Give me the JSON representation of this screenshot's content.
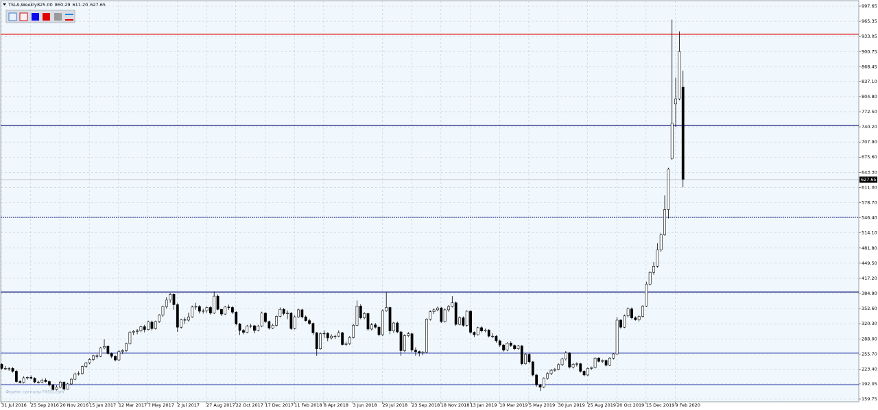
{
  "chart_data": {
    "type": "candlestick",
    "symbol": "TSLA,Weekly",
    "header_labels": [
      "825.00",
      "860.29",
      "611.20",
      "627.65"
    ],
    "watermark": "Форекс сигналы FXSSI.com",
    "ylim": [
      153.9,
      1007.9
    ],
    "yticks": [
      997.65,
      965.35,
      933.05,
      900.75,
      868.45,
      {
        "value": 837.1,
        "label": "837.10"
      },
      {
        "value": 804.8,
        "label": "804.80"
      },
      {
        "value": 772.5,
        "label": "772.50"
      },
      {
        "value": 740.2,
        "label": "740.20"
      },
      {
        "value": 707.9,
        "label": "707.90"
      },
      {
        "value": 675.6,
        "label": "675.60"
      },
      {
        "value": 643.3,
        "label": "643.30"
      },
      {
        "value": 611,
        "label": "611.00"
      },
      {
        "value": 578.7,
        "label": "578.70"
      },
      {
        "value": 546.4,
        "label": "546.40"
      },
      {
        "value": 514.1,
        "label": "514.10"
      },
      {
        "value": 481.8,
        "label": "481.80"
      },
      {
        "value": 449.5,
        "label": "449.50"
      },
      {
        "value": 417.2,
        "label": "417.20"
      },
      {
        "value": 384.9,
        "label": "384.90"
      },
      {
        "value": 352.6,
        "label": "352.60"
      },
      {
        "value": 320.3,
        "label": "320.30"
      },
      {
        "value": 288,
        "label": "288.00"
      },
      {
        "value": 255.7,
        "label": "255.70"
      },
      {
        "value": 223.4,
        "label": "223.40"
      },
      192.05,
      159.75
    ],
    "grid": true,
    "bull_color": "#ffffff",
    "bear_color": "#000000",
    "levels": [
      {
        "value": 937.7,
        "color": "#e0242a",
        "dashed": false
      },
      {
        "value": 743.2,
        "color": "#1a237e",
        "dashed": false
      },
      {
        "value": 547.3,
        "color": "#1a237e",
        "dashed": true
      },
      {
        "value": 387.9,
        "color": "#1a237e",
        "dashed": false
      },
      {
        "value": 257.7,
        "color": "#5c6bc0",
        "dashed": false
      },
      {
        "value": 190.4,
        "color": "#3949ab",
        "dashed": false
      }
    ],
    "categories": [
      "31 Jul 2016",
      null,
      null,
      null,
      null,
      null,
      null,
      null,
      "25 Sep 2016",
      null,
      null,
      null,
      null,
      null,
      null,
      null,
      "20 Nov 2016",
      null,
      null,
      null,
      null,
      null,
      null,
      null,
      "15 Jan 2017",
      null,
      null,
      null,
      null,
      null,
      null,
      null,
      "12 Mar 2017",
      null,
      null,
      null,
      null,
      null,
      null,
      null,
      "7 May 2017",
      null,
      null,
      null,
      null,
      null,
      null,
      null,
      "2 Jul 2017",
      null,
      null,
      null,
      null,
      null,
      null,
      null,
      "27 Aug 2017",
      null,
      null,
      null,
      null,
      null,
      null,
      null,
      "22 Oct 2017",
      null,
      null,
      null,
      null,
      null,
      null,
      null,
      "17 Dec 2017",
      null,
      null,
      null,
      null,
      null,
      null,
      null,
      "11 Feb 2018",
      null,
      null,
      null,
      null,
      null,
      null,
      null,
      "8 Apr 2018",
      null,
      null,
      null,
      null,
      null,
      null,
      null,
      "3 Jun 2018",
      null,
      null,
      null,
      null,
      null,
      null,
      null,
      "29 Jul 2018",
      null,
      null,
      null,
      null,
      null,
      null,
      null,
      "23 Sep 2018",
      null,
      null,
      null,
      null,
      null,
      null,
      null,
      "18 Nov 2018",
      null,
      null,
      null,
      null,
      null,
      null,
      null,
      "13 Jan 2019",
      null,
      null,
      null,
      null,
      null,
      null,
      null,
      "10 Mar 2019",
      null,
      null,
      null,
      null,
      null,
      null,
      null,
      "5 May 2019",
      null,
      null,
      null,
      null,
      null,
      null,
      null,
      "30 Jun 2019",
      null,
      null,
      null,
      null,
      null,
      null,
      null,
      "25 Aug 2019",
      null,
      null,
      null,
      null,
      null,
      null,
      null,
      "20 Oct 2019",
      null,
      null,
      null,
      null,
      null,
      null,
      null,
      "15 Dec 2019",
      null,
      null,
      null,
      null,
      null,
      null,
      null,
      "9 Feb 2020",
      null,
      null
    ],
    "ohlc": [
      [
        234,
        236,
        222,
        225
      ],
      [
        225,
        230,
        222,
        225
      ],
      [
        225,
        228,
        220,
        225
      ],
      [
        225,
        228,
        216,
        219
      ],
      [
        219,
        222,
        195,
        197
      ],
      [
        197,
        200,
        193,
        195
      ],
      [
        195,
        208,
        193,
        205
      ],
      [
        205,
        208,
        201,
        206
      ],
      [
        206,
        210,
        202,
        204
      ],
      [
        204,
        206,
        194,
        196
      ],
      [
        196,
        199,
        193,
        196
      ],
      [
        196,
        203,
        194,
        200
      ],
      [
        200,
        204,
        195,
        197
      ],
      [
        197,
        199,
        187,
        190
      ],
      [
        190,
        192,
        178,
        180
      ],
      [
        180,
        189,
        178,
        185
      ],
      [
        185,
        198,
        183,
        196
      ],
      [
        196,
        197,
        178,
        181
      ],
      [
        181,
        194,
        180,
        192
      ],
      [
        192,
        204,
        190,
        202
      ],
      [
        202,
        216,
        200,
        213
      ],
      [
        213,
        219,
        210,
        214
      ],
      [
        214,
        231,
        212,
        229
      ],
      [
        229,
        239,
        226,
        237
      ],
      [
        237,
        247,
        234,
        244
      ],
      [
        244,
        254,
        241,
        252
      ],
      [
        252,
        256,
        246,
        251
      ],
      [
        251,
        271,
        249,
        269
      ],
      [
        269,
        287,
        266,
        272
      ],
      [
        272,
        275,
        254,
        257
      ],
      [
        257,
        259,
        247,
        251
      ],
      [
        251,
        253,
        240,
        243
      ],
      [
        243,
        265,
        241,
        261
      ],
      [
        261,
        266,
        256,
        263
      ],
      [
        263,
        280,
        260,
        278
      ],
      [
        278,
        305,
        276,
        302
      ],
      [
        302,
        307,
        296,
        304
      ],
      [
        304,
        309,
        298,
        305
      ],
      [
        305,
        316,
        302,
        314
      ],
      [
        314,
        318,
        302,
        308
      ],
      [
        308,
        327,
        306,
        324
      ],
      [
        324,
        327,
        306,
        310
      ],
      [
        310,
        327,
        308,
        325
      ],
      [
        325,
        341,
        322,
        339
      ],
      [
        339,
        359,
        335,
        357
      ],
      [
        357,
        377,
        353,
        371
      ],
      [
        371,
        386,
        365,
        383
      ],
      [
        383,
        385,
        350,
        361
      ],
      [
        361,
        364,
        303,
        313
      ],
      [
        313,
        331,
        310,
        329
      ],
      [
        329,
        334,
        320,
        328
      ],
      [
        328,
        344,
        325,
        335
      ],
      [
        335,
        359,
        333,
        356
      ],
      [
        356,
        365,
        350,
        357
      ],
      [
        357,
        360,
        342,
        347
      ],
      [
        347,
        352,
        342,
        348
      ],
      [
        348,
        357,
        344,
        355
      ],
      [
        355,
        358,
        340,
        343
      ],
      [
        343,
        389,
        341,
        379
      ],
      [
        379,
        383,
        349,
        351
      ],
      [
        351,
        352,
        337,
        341
      ],
      [
        341,
        358,
        339,
        356
      ],
      [
        356,
        361,
        350,
        355
      ],
      [
        355,
        358,
        341,
        345
      ],
      [
        345,
        347,
        317,
        320
      ],
      [
        320,
        322,
        296,
        306
      ],
      [
        306,
        309,
        298,
        302
      ],
      [
        302,
        318,
        300,
        315
      ],
      [
        315,
        320,
        311,
        316
      ],
      [
        316,
        318,
        300,
        306
      ],
      [
        306,
        318,
        304,
        315
      ],
      [
        315,
        346,
        313,
        343
      ],
      [
        343,
        345,
        322,
        325
      ],
      [
        325,
        327,
        308,
        311
      ],
      [
        311,
        320,
        309,
        317
      ],
      [
        317,
        338,
        314,
        336
      ],
      [
        336,
        355,
        334,
        351
      ],
      [
        351,
        354,
        338,
        342
      ],
      [
        342,
        349,
        330,
        343
      ],
      [
        343,
        345,
        307,
        310
      ],
      [
        310,
        338,
        308,
        335
      ],
      [
        335,
        352,
        333,
        350
      ],
      [
        350,
        352,
        332,
        335
      ],
      [
        335,
        338,
        325,
        327
      ],
      [
        327,
        331,
        318,
        321
      ],
      [
        321,
        323,
        296,
        301
      ],
      [
        301,
        303,
        252,
        267
      ],
      [
        267,
        302,
        265,
        299
      ],
      [
        299,
        306,
        290,
        300
      ],
      [
        300,
        302,
        283,
        290
      ],
      [
        290,
        298,
        287,
        294
      ],
      [
        294,
        297,
        288,
        294
      ],
      [
        294,
        306,
        292,
        301
      ],
      [
        301,
        303,
        274,
        276
      ],
      [
        276,
        282,
        273,
        278
      ],
      [
        278,
        294,
        275,
        291
      ],
      [
        291,
        320,
        289,
        317
      ],
      [
        317,
        370,
        315,
        358
      ],
      [
        358,
        362,
        330,
        333
      ],
      [
        333,
        345,
        330,
        342
      ],
      [
        342,
        344,
        305,
        309
      ],
      [
        309,
        322,
        306,
        318
      ],
      [
        318,
        322,
        310,
        313
      ],
      [
        313,
        316,
        294,
        297
      ],
      [
        297,
        351,
        294,
        348
      ],
      [
        348,
        387,
        346,
        355
      ],
      [
        355,
        357,
        298,
        305
      ],
      [
        305,
        324,
        301,
        322
      ],
      [
        322,
        325,
        300,
        303
      ],
      [
        303,
        305,
        252,
        263
      ],
      [
        263,
        298,
        260,
        295
      ],
      [
        295,
        303,
        292,
        299
      ],
      [
        299,
        301,
        260,
        264
      ],
      [
        264,
        270,
        252,
        261
      ],
      [
        261,
        263,
        251,
        258
      ],
      [
        258,
        262,
        253,
        260
      ],
      [
        260,
        332,
        258,
        330
      ],
      [
        330,
        349,
        327,
        346
      ],
      [
        346,
        353,
        341,
        350
      ],
      [
        350,
        357,
        347,
        354
      ],
      [
        354,
        356,
        322,
        325
      ],
      [
        325,
        353,
        323,
        350
      ],
      [
        350,
        360,
        346,
        357
      ],
      [
        357,
        379,
        355,
        365
      ],
      [
        365,
        368,
        316,
        319
      ],
      [
        319,
        336,
        317,
        333
      ],
      [
        333,
        336,
        314,
        317
      ],
      [
        317,
        349,
        314,
        347
      ],
      [
        347,
        349,
        299,
        302
      ],
      [
        302,
        304,
        292,
        297
      ],
      [
        297,
        314,
        295,
        312
      ],
      [
        312,
        315,
        302,
        305
      ],
      [
        305,
        310,
        302,
        307
      ],
      [
        307,
        309,
        291,
        294
      ],
      [
        294,
        300,
        290,
        294
      ],
      [
        294,
        296,
        280,
        284
      ],
      [
        284,
        286,
        271,
        275
      ],
      [
        275,
        277,
        261,
        264
      ],
      [
        264,
        281,
        262,
        279
      ],
      [
        279,
        283,
        271,
        274
      ],
      [
        274,
        276,
        264,
        267
      ],
      [
        267,
        275,
        265,
        273
      ],
      [
        273,
        275,
        232,
        235
      ],
      [
        235,
        258,
        233,
        255
      ],
      [
        255,
        257,
        236,
        239
      ],
      [
        239,
        241,
        208,
        211
      ],
      [
        211,
        213,
        186,
        190
      ],
      [
        190,
        192,
        177,
        185
      ],
      [
        185,
        206,
        183,
        204
      ],
      [
        204,
        217,
        201,
        214
      ],
      [
        214,
        224,
        211,
        221
      ],
      [
        221,
        226,
        218,
        223
      ],
      [
        223,
        236,
        221,
        233
      ],
      [
        233,
        248,
        230,
        245
      ],
      [
        245,
        262,
        242,
        258
      ],
      [
        258,
        260,
        225,
        228
      ],
      [
        228,
        237,
        225,
        234
      ],
      [
        234,
        238,
        229,
        235
      ],
      [
        235,
        237,
        216,
        219
      ],
      [
        219,
        221,
        208,
        211
      ],
      [
        211,
        227,
        209,
        225
      ],
      [
        225,
        229,
        222,
        227
      ],
      [
        227,
        249,
        225,
        247
      ],
      [
        247,
        249,
        238,
        240
      ],
      [
        240,
        244,
        237,
        242
      ],
      [
        242,
        244,
        229,
        232
      ],
      [
        232,
        249,
        230,
        247
      ],
      [
        247,
        258,
        244,
        256
      ],
      [
        256,
        335,
        254,
        328
      ],
      [
        328,
        330,
        310,
        313
      ],
      [
        313,
        340,
        311,
        337
      ],
      [
        337,
        355,
        334,
        352
      ],
      [
        352,
        355,
        330,
        333
      ],
      [
        333,
        336,
        327,
        329
      ],
      [
        329,
        338,
        325,
        336
      ],
      [
        336,
        360,
        334,
        358
      ],
      [
        358,
        410,
        356,
        405
      ],
      [
        405,
        432,
        402,
        430
      ],
      [
        430,
        452,
        425,
        443
      ],
      [
        443,
        492,
        440,
        478
      ],
      [
        478,
        513,
        474,
        510
      ],
      [
        510,
        594,
        508,
        564
      ],
      [
        564,
        653,
        545,
        650
      ],
      [
        673,
        969,
        670,
        748
      ],
      [
        789,
        845,
        740,
        800
      ],
      [
        800,
        944,
        797,
        901
      ],
      [
        825,
        860.29,
        611.2,
        627.65
      ]
    ]
  }
}
